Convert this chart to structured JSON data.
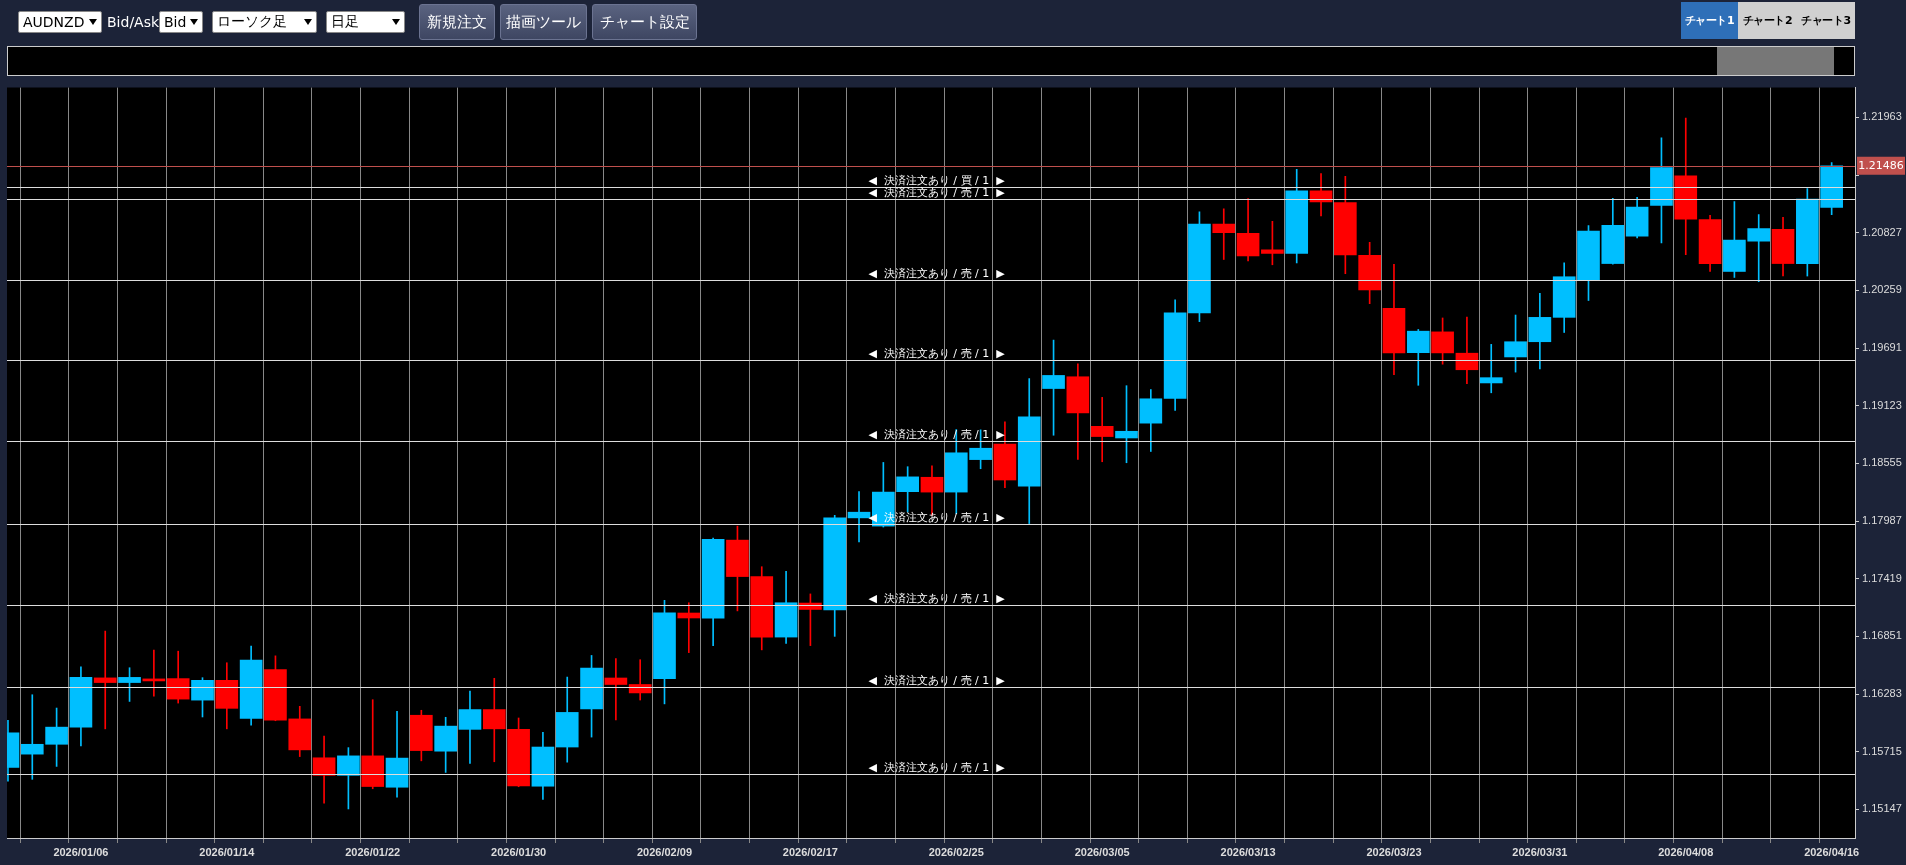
{
  "chart_data": {
    "type": "candlestick",
    "title": "AUDNZD",
    "annotations": [
      "Bid/Ask",
      "Bid",
      "ローソク足",
      "日足",
      "新規注文",
      "描画ツール",
      "チャート設定",
      "チャート1",
      "チャート2",
      "チャート3"
    ],
    "categories": [
      null,
      null,
      null,
      "2026/01/06",
      null,
      null,
      null,
      null,
      null,
      "2026/01/14",
      null,
      null,
      null,
      null,
      null,
      "2026/01/22",
      null,
      null,
      null,
      null,
      null,
      "2026/01/30",
      null,
      null,
      null,
      null,
      null,
      "2026/02/09",
      null,
      null,
      null,
      null,
      null,
      "2026/02/17",
      null,
      null,
      null,
      null,
      null,
      "2026/02/25",
      null,
      null,
      null,
      null,
      null,
      "2026/03/05",
      null,
      null,
      null,
      null,
      null,
      "2026/03/13",
      null,
      null,
      null,
      null,
      null,
      "2026/03/23",
      null,
      null,
      null,
      null,
      null,
      "2026/03/31",
      null,
      null,
      null,
      null,
      null,
      "2026/04/08",
      null,
      null,
      null,
      null,
      null,
      "2026/04/16"
    ],
    "ohlc": [
      [
        1.1556,
        1.16025,
        1.15424,
        1.15901
      ],
      [
        1.15691,
        1.16276,
        1.15443,
        1.15788
      ],
      [
        1.15788,
        1.16145,
        1.1557,
        1.15957
      ],
      [
        1.15957,
        1.16552,
        1.15772,
        1.16447
      ],
      [
        1.16442,
        1.16903,
        1.1594,
        1.16396
      ],
      [
        1.16396,
        1.16542,
        1.1621,
        1.16447
      ],
      [
        1.16432,
        1.16717,
        1.16262,
        1.16412
      ],
      [
        1.16435,
        1.16705,
        1.16194,
        1.16233
      ],
      [
        1.16223,
        1.16444,
        1.16057,
        1.16418
      ],
      [
        1.16418,
        1.16591,
        1.1594,
        1.16142
      ],
      [
        1.16042,
        1.16756,
        1.15976,
        1.16617
      ],
      [
        1.16525,
        1.16659,
        1.1602,
        1.16025
      ],
      [
        1.16038,
        1.16162,
        1.15667,
        1.15733
      ],
      [
        1.15655,
        1.15869,
        1.15209,
        1.15482
      ],
      [
        1.15482,
        1.15755,
        1.15151,
        1.15674
      ],
      [
        1.15674,
        1.16227,
        1.1535,
        1.15372
      ],
      [
        1.15365,
        1.16113,
        1.15268,
        1.15652
      ],
      [
        1.16074,
        1.16123,
        1.15625,
        1.15726
      ],
      [
        1.1572,
        1.16054,
        1.15511,
        1.15967
      ],
      [
        1.15935,
        1.16311,
        1.15599,
        1.1613
      ],
      [
        1.1613,
        1.16438,
        1.15616,
        1.1594
      ],
      [
        1.15936,
        1.16047,
        1.1537,
        1.15378
      ],
      [
        1.15375,
        1.15907,
        1.15246,
        1.15761
      ],
      [
        1.15761,
        1.1645,
        1.15612,
        1.16102
      ],
      [
        1.16137,
        1.16663,
        1.15859,
        1.16538
      ],
      [
        1.16441,
        1.16632,
        1.16029,
        1.16377
      ],
      [
        1.16377,
        1.16621,
        1.16224,
        1.16294
      ],
      [
        1.16434,
        1.17206,
        1.16186,
        1.17084
      ],
      [
        1.17081,
        1.17182,
        1.16691,
        1.17032
      ],
      [
        1.17029,
        1.17819,
        1.1676,
        1.17806
      ],
      [
        1.17799,
        1.17937,
        1.17102,
        1.1744
      ],
      [
        1.1744,
        1.17537,
        1.16718,
        1.16844
      ],
      [
        1.16844,
        1.17492,
        1.16782,
        1.17182
      ],
      [
        1.17179,
        1.17269,
        1.1676,
        1.17116
      ],
      [
        1.17112,
        1.18043,
        1.16851,
        1.18018
      ],
      [
        1.18018,
        1.18278,
        1.17781,
        1.18074
      ],
      [
        1.17937,
        1.18564,
        1.17928,
        1.18272
      ],
      [
        1.18276,
        1.18522,
        1.18077,
        1.18422
      ],
      [
        1.18418,
        1.1853,
        1.18043,
        1.18272
      ],
      [
        1.18272,
        1.18888,
        1.18059,
        1.18659
      ],
      [
        1.18592,
        1.18885,
        1.18502,
        1.18704
      ],
      [
        1.18745,
        1.18965,
        1.18316,
        1.18391
      ],
      [
        1.18331,
        1.1939,
        1.17962,
        1.19014
      ],
      [
        1.19292,
        1.19769,
        1.18832,
        1.19421
      ],
      [
        1.19408,
        1.19536,
        1.18595,
        1.19052
      ],
      [
        1.1892,
        1.19205,
        1.18571,
        1.18819
      ],
      [
        1.18805,
        1.1932,
        1.18561,
        1.18871
      ],
      [
        1.18951,
        1.19282,
        1.18672,
        1.19191
      ],
      [
        1.19195,
        1.20166,
        1.19076,
        1.20037
      ],
      [
        1.20037,
        1.21033,
        1.19951,
        1.20911
      ],
      [
        1.20911,
        1.21061,
        1.20563,
        1.20828
      ],
      [
        1.20821,
        1.21163,
        1.20549,
        1.20598
      ],
      [
        1.20657,
        1.20939,
        1.20511,
        1.20622
      ],
      [
        1.20622,
        1.21451,
        1.20529,
        1.21239
      ],
      [
        1.21239,
        1.21409,
        1.20992,
        1.2113
      ],
      [
        1.21123,
        1.21382,
        1.20423,
        1.20609
      ],
      [
        1.20605,
        1.20733,
        1.20128,
        1.20263
      ],
      [
        1.20081,
        1.20515,
        1.19428,
        1.19643
      ],
      [
        1.19645,
        1.19874,
        1.19324,
        1.19857
      ],
      [
        1.1985,
        1.19987,
        1.19532,
        1.19643
      ],
      [
        1.1964,
        1.19996,
        1.1934,
        1.19477
      ],
      [
        1.19347,
        1.19727,
        1.1925,
        1.19399
      ],
      [
        1.19603,
        1.20016,
        1.19454,
        1.19753
      ],
      [
        1.19753,
        1.2023,
        1.19484,
        1.19993
      ],
      [
        1.19993,
        1.2053,
        1.19844,
        1.20393
      ],
      [
        1.20364,
        1.20897,
        1.20159,
        1.20842
      ],
      [
        1.20523,
        1.21166,
        1.20517,
        1.209
      ],
      [
        1.20793,
        1.21176,
        1.20776,
        1.21079
      ],
      [
        1.21095,
        1.21761,
        1.20725,
        1.21469
      ],
      [
        1.21388,
        1.21956,
        1.20611,
        1.20959
      ],
      [
        1.20956,
        1.20998,
        1.20445,
        1.20523
      ],
      [
        1.20445,
        1.21134,
        1.20386,
        1.20754
      ],
      [
        1.20744,
        1.21005,
        1.20344,
        1.20868
      ],
      [
        1.20861,
        1.20978,
        1.204,
        1.20523
      ],
      [
        1.20523,
        1.21261,
        1.204,
        1.21157
      ],
      [
        1.21076,
        1.21517,
        1.21005,
        1.21486
      ]
    ],
    "colors": [
      "#00bfff",
      "#00bfff",
      "#00bfff",
      "#00bfff",
      "#ff0000",
      "#00bfff",
      "#ff0000",
      "#ff0000",
      "#00bfff",
      "#ff0000",
      "#00bfff",
      "#ff0000",
      "#ff0000",
      "#ff0000",
      "#00bfff",
      "#ff0000",
      "#00bfff",
      "#ff0000",
      "#00bfff",
      "#00bfff",
      "#ff0000",
      "#ff0000",
      "#00bfff",
      "#00bfff",
      "#00bfff",
      "#ff0000",
      "#ff0000",
      "#00bfff",
      "#ff0000",
      "#00bfff",
      "#ff0000",
      "#ff0000",
      "#00bfff",
      "#ff0000",
      "#00bfff",
      "#00bfff",
      "#00bfff",
      "#00bfff",
      "#ff0000",
      "#00bfff",
      "#00bfff",
      "#ff0000",
      "#00bfff",
      "#00bfff",
      "#ff0000",
      "#ff0000",
      "#00bfff",
      "#00bfff",
      "#00bfff",
      "#00bfff",
      "#ff0000",
      "#ff0000",
      "#ff0000",
      "#00bfff",
      "#ff0000",
      "#ff0000",
      "#ff0000",
      "#ff0000",
      "#00bfff",
      "#ff0000",
      "#ff0000",
      "#00bfff",
      "#00bfff",
      "#00bfff",
      "#00bfff",
      "#00bfff",
      "#00bfff",
      "#00bfff",
      "#00bfff",
      "#ff0000",
      "#ff0000",
      "#00bfff",
      "#00bfff",
      "#ff0000",
      "#00bfff",
      "#00bfff"
    ],
    "ylim": [
      1.14865,
      1.22256
    ],
    "yticks": [
      1.21963,
      {
        "value": 1.21395,
        "label": null
      },
      1.20827,
      1.20259,
      1.19691,
      1.19123,
      1.18555,
      1.17987,
      1.17419,
      1.16851,
      1.16283,
      1.15715,
      1.15147
    ],
    "grid": "x",
    "ref_lines": [
      {
        "axis": "y",
        "value": 1.21486,
        "label": "1.21486",
        "color": "#c0504d"
      },
      {
        "axis": "y",
        "value": 1.21281,
        "label": "◀  決済注文あり / 買 / 1  ▶",
        "color": "#dddddd"
      },
      {
        "axis": "y",
        "value": 1.21159,
        "label": "◀  決済注文あり / 売 / 1  ▶",
        "color": "#dddddd"
      },
      {
        "axis": "y",
        "value": 1.20364,
        "label": "◀  決済注文あり / 売 / 1  ▶",
        "color": "#dddddd"
      },
      {
        "axis": "y",
        "value": 1.19569,
        "label": "◀  決済注文あり / 売 / 1  ▶",
        "color": "#dddddd"
      },
      {
        "axis": "y",
        "value": 1.18775,
        "label": "◀  決済注文あり / 売 / 1  ▶",
        "color": "#dddddd"
      },
      {
        "axis": "y",
        "value": 1.17956,
        "label": "◀  決済注文あり / 売 / 1  ▶",
        "color": "#dddddd"
      },
      {
        "axis": "y",
        "value": 1.17156,
        "label": "◀  決済注文あり / 売 / 1  ▶",
        "color": "#dddddd"
      },
      {
        "axis": "y",
        "value": 1.16357,
        "label": "◀  決済注文あり / 売 / 1  ▶",
        "color": "#dddddd"
      },
      {
        "axis": "y",
        "value": 1.15499,
        "label": "◀  決済注文あり / 売 / 1  ▶",
        "color": "#dddddd"
      }
    ]
  }
}
